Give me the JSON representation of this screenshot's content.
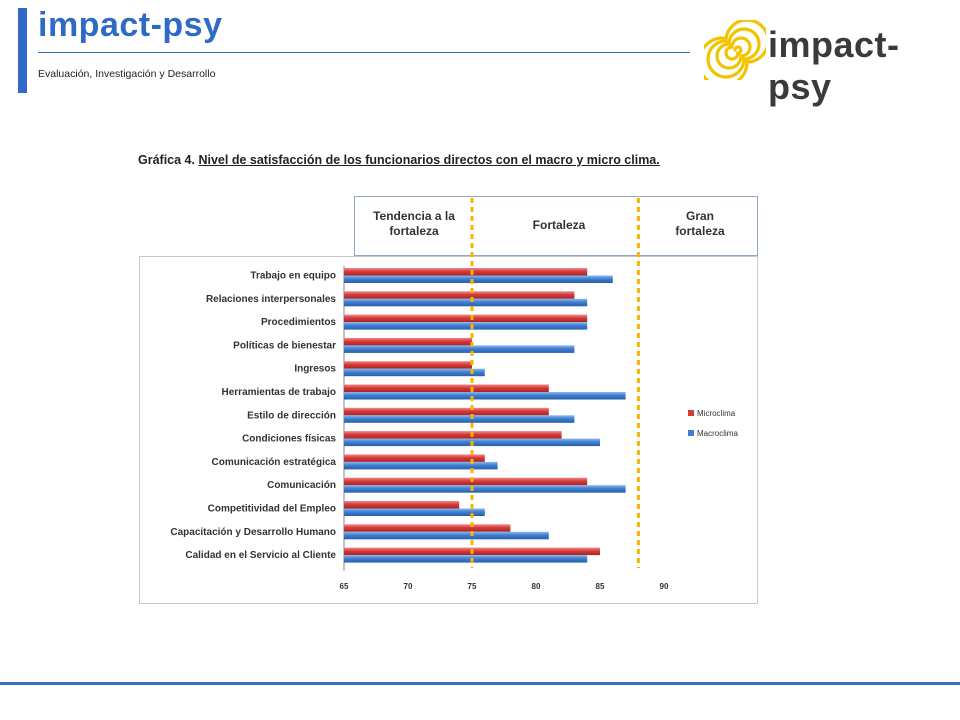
{
  "header": {
    "title": "impact-psy",
    "subtitle": "Evaluación, Investigación y Desarrollo",
    "logo_text": "impact-psy"
  },
  "colors": {
    "brand_blue": "#2f6bc4",
    "microclima": "#d63a3a",
    "macroclima": "#3f7fd0",
    "threshold_line": "#f7b500",
    "logo_spiral": "#f2c400"
  },
  "chart_data": {
    "type": "bar",
    "orientation": "horizontal",
    "title_prefix": "Gráfica 4.",
    "title": "Nivel de satisfacción de los funcionarios directos con el macro y micro clima.",
    "categories": [
      "Trabajo en equipo",
      "Relaciones interpersonales",
      "Procedimientos",
      "Políticas de bienestar",
      "Ingresos",
      "Herramientas de trabajo",
      "Estilo de dirección",
      "Condiciones físicas",
      "Comunicación estratégica",
      "Comunicación",
      "Competitividad del Empleo",
      "Capacitación y Desarrollo Humano",
      "Calidad en el Servicio al Cliente"
    ],
    "series": [
      {
        "name": "Microclima",
        "color": "#d63a3a",
        "values": [
          84,
          83,
          84,
          75,
          75,
          81,
          81,
          82,
          76,
          84,
          74,
          78,
          85
        ]
      },
      {
        "name": "Macroclima",
        "color": "#3f7fd0",
        "values": [
          86,
          84,
          84,
          83,
          76,
          87,
          83,
          85,
          77,
          87,
          76,
          81,
          84
        ]
      }
    ],
    "xlim": [
      65,
      90
    ],
    "xticks": [
      65,
      70,
      75,
      80,
      85,
      90
    ],
    "thresholds": [
      75,
      88
    ],
    "zones": [
      {
        "label_lines": [
          "Tendencia a la",
          "fortaleza"
        ]
      },
      {
        "label_lines": [
          "Fortaleza"
        ]
      },
      {
        "label_lines": [
          "Gran",
          "fortaleza"
        ]
      }
    ],
    "legend_position": "right",
    "grid": false
  }
}
